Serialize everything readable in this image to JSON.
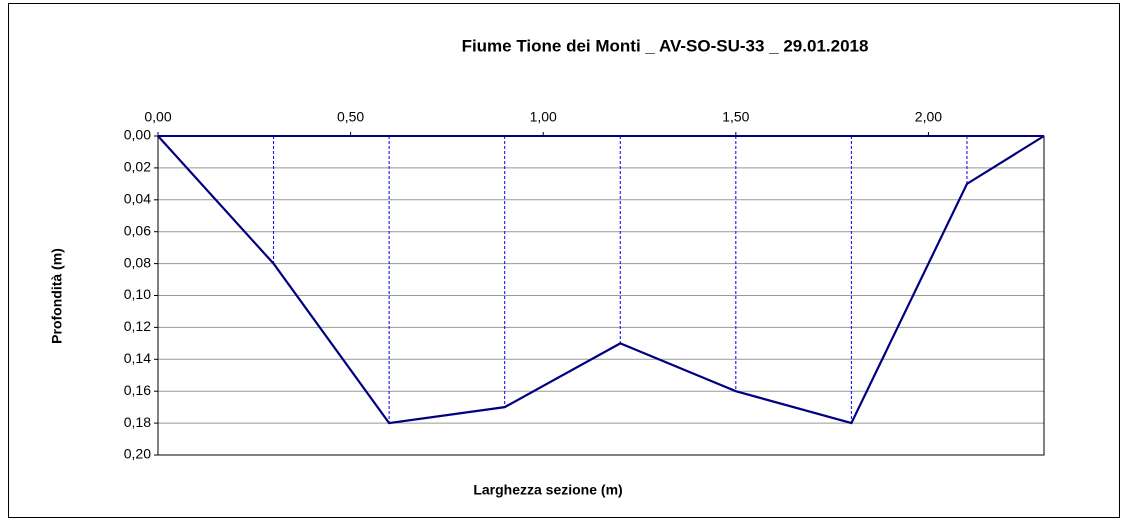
{
  "chart_data": {
    "type": "line",
    "title": "Fiume Tione dei Monti _ AV-SO-SU-33 _ 29.01.2018",
    "x_label": "Larghezza sezione (m)",
    "y_label": "Profondità (m)",
    "x": [
      0,
      0.3,
      0.6,
      0.9,
      1.2,
      1.5,
      1.8,
      2.1,
      2.3
    ],
    "values": [
      0,
      0.08,
      0.18,
      0.17,
      0.13,
      0.16,
      0.18,
      0.03,
      0
    ],
    "color": "#000080",
    "drop_line_color": "#0000ff",
    "xlim": [
      0,
      2.3
    ],
    "ylim": [
      0,
      0.2
    ],
    "y_inverted": true,
    "x_axis_position": "top",
    "grid": true,
    "xticks": [
      {
        "value": 0,
        "label": "0,00"
      },
      {
        "value": 0.5,
        "label": "0,50"
      },
      {
        "value": 1,
        "label": "1,00"
      },
      {
        "value": 1.5,
        "label": "1,50"
      },
      {
        "value": 2,
        "label": "2,00"
      }
    ],
    "yticks": [
      {
        "value": 0,
        "label": "0,00"
      },
      {
        "value": 0.02,
        "label": "0,02"
      },
      {
        "value": 0.04,
        "label": "0,04"
      },
      {
        "value": 0.06,
        "label": "0,06"
      },
      {
        "value": 0.08,
        "label": "0,08"
      },
      {
        "value": 0.1,
        "label": "0,10"
      },
      {
        "value": 0.12,
        "label": "0,12"
      },
      {
        "value": 0.14,
        "label": "0,14"
      },
      {
        "value": 0.16,
        "label": "0,16"
      },
      {
        "value": 0.18,
        "label": "0,18"
      },
      {
        "value": 0.2,
        "label": "0,20"
      }
    ]
  }
}
